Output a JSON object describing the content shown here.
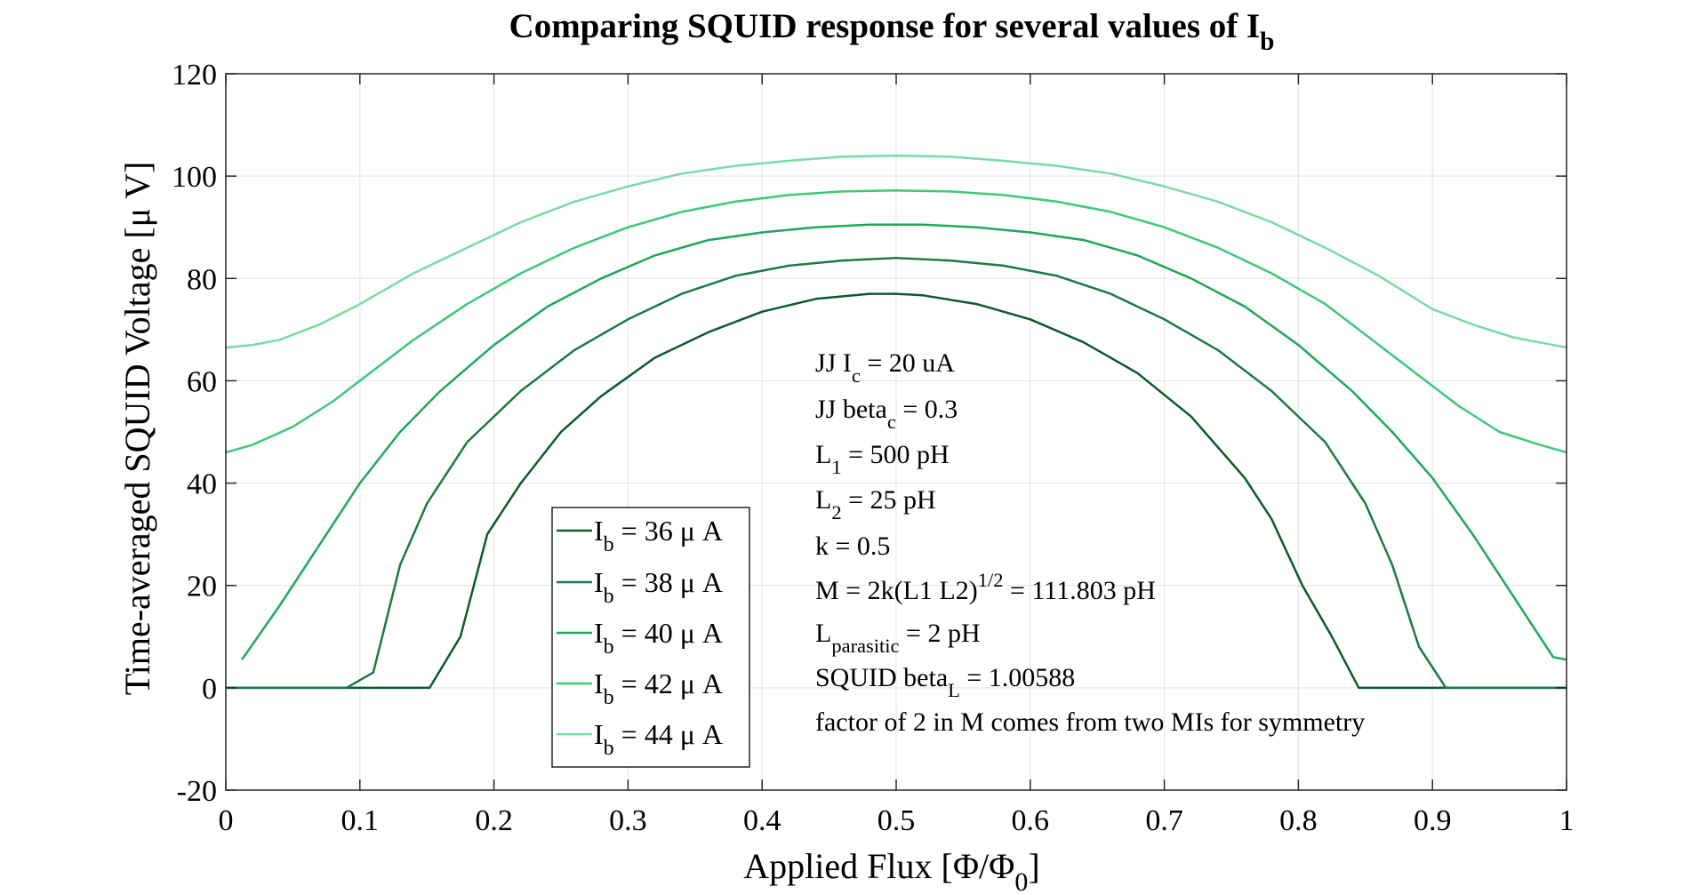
{
  "chart_data": {
    "type": "line",
    "title": {
      "main": "Comparing SQUID response for several values of I",
      "sub": "b"
    },
    "xlabel": {
      "prefix": "Applied Flux [Φ/Φ",
      "sub": "0",
      "suffix": "]"
    },
    "ylabel": "Time-averaged SQUID Voltage [μ V]",
    "xlim": [
      0,
      1
    ],
    "ylim": [
      -20,
      120
    ],
    "xticks": [
      0,
      0.1,
      0.2,
      0.3,
      0.4,
      0.5,
      0.6,
      0.7,
      0.8,
      0.9,
      1
    ],
    "xtick_labels": [
      "0",
      "0.1",
      "0.2",
      "0.3",
      "0.4",
      "0.5",
      "0.6",
      "0.7",
      "0.8",
      "0.9",
      "1"
    ],
    "yticks": [
      -20,
      0,
      20,
      40,
      60,
      80,
      100,
      120
    ],
    "ytick_labels": [
      "-20",
      "0",
      "20",
      "40",
      "60",
      "80",
      "100",
      "120"
    ],
    "grid": true,
    "legend_position": "lower-left",
    "series": [
      {
        "label_main": "I",
        "label_sub": "b",
        "label_rest": " = 36 μ A",
        "color": "#0d5a2c",
        "x": [
          0,
          0.05,
          0.1,
          0.152,
          0.175,
          0.195,
          0.22,
          0.25,
          0.28,
          0.32,
          0.36,
          0.4,
          0.44,
          0.48,
          0.5,
          0.52,
          0.56,
          0.6,
          0.64,
          0.68,
          0.72,
          0.76,
          0.78,
          0.803,
          0.825,
          0.845,
          0.9,
          1
        ],
        "y": [
          0,
          0,
          0,
          0,
          10,
          30,
          40,
          50,
          57,
          64.5,
          69.5,
          73.5,
          76,
          77,
          77,
          76.7,
          75,
          72,
          67.5,
          61.5,
          53,
          41,
          33,
          20,
          10,
          0,
          0,
          0
        ]
      },
      {
        "label_main": "I",
        "label_sub": "b",
        "label_rest": " = 38 μ A",
        "color": "#1c7a46",
        "x": [
          0,
          0.05,
          0.09,
          0.11,
          0.13,
          0.15,
          0.18,
          0.22,
          0.26,
          0.3,
          0.34,
          0.38,
          0.42,
          0.46,
          0.5,
          0.54,
          0.58,
          0.62,
          0.66,
          0.7,
          0.74,
          0.78,
          0.82,
          0.85,
          0.87,
          0.89,
          0.91,
          1
        ],
        "y": [
          0,
          0,
          0,
          3,
          24,
          36,
          48,
          58,
          66,
          72,
          77,
          80.5,
          82.5,
          83.5,
          84,
          83.5,
          82.5,
          80.5,
          77,
          72,
          66,
          58,
          48,
          36,
          24,
          8,
          0,
          0
        ]
      },
      {
        "label_main": "I",
        "label_sub": "b",
        "label_rest": " = 40 μ A",
        "color": "#1ea75a",
        "x": [
          0.012,
          0.04,
          0.07,
          0.1,
          0.13,
          0.16,
          0.2,
          0.24,
          0.28,
          0.32,
          0.36,
          0.4,
          0.44,
          0.48,
          0.5,
          0.52,
          0.56,
          0.6,
          0.64,
          0.68,
          0.72,
          0.76,
          0.8,
          0.84,
          0.87,
          0.9,
          0.93,
          0.96,
          0.99,
          1
        ],
        "y": [
          5.5,
          16,
          28,
          40,
          50,
          58,
          67,
          74.5,
          80,
          84.5,
          87.5,
          89,
          90,
          90.5,
          90.5,
          90.5,
          90,
          89,
          87.5,
          84.5,
          80,
          74.5,
          67,
          58,
          50,
          41,
          30,
          18,
          6,
          5.5
        ]
      },
      {
        "label_main": "I",
        "label_sub": "b",
        "label_rest": " = 42 μ A",
        "color": "#3cc97a",
        "x": [
          0,
          0.02,
          0.05,
          0.08,
          0.11,
          0.14,
          0.18,
          0.22,
          0.26,
          0.3,
          0.34,
          0.38,
          0.42,
          0.46,
          0.5,
          0.54,
          0.58,
          0.62,
          0.66,
          0.7,
          0.74,
          0.78,
          0.82,
          0.86,
          0.89,
          0.92,
          0.95,
          0.98,
          1
        ],
        "y": [
          46,
          47.5,
          51,
          56,
          62,
          68,
          75,
          81,
          86,
          90,
          93,
          95,
          96.3,
          97,
          97.2,
          97,
          96.3,
          95,
          93,
          90,
          86,
          81,
          75,
          67,
          61,
          55,
          50,
          47.5,
          46
        ]
      },
      {
        "label_main": "I",
        "label_sub": "b",
        "label_rest": " = 44 μ A",
        "color": "#79dba4",
        "x": [
          0,
          0.02,
          0.04,
          0.07,
          0.1,
          0.14,
          0.18,
          0.22,
          0.26,
          0.3,
          0.34,
          0.38,
          0.42,
          0.46,
          0.5,
          0.54,
          0.58,
          0.62,
          0.66,
          0.7,
          0.74,
          0.78,
          0.82,
          0.86,
          0.9,
          0.93,
          0.96,
          0.98,
          1
        ],
        "y": [
          66.5,
          67,
          68,
          71,
          75,
          81,
          86,
          91,
          95,
          98,
          100.5,
          102,
          103,
          103.8,
          104,
          103.8,
          103,
          102,
          100.5,
          98,
          95,
          91,
          86,
          80.5,
          74,
          71,
          68.5,
          67.5,
          66.5
        ]
      }
    ],
    "annotations": [
      {
        "parts": [
          [
            "JJ I",
            ""
          ],
          [
            "c",
            "sub"
          ],
          [
            " = 20 uA",
            ""
          ]
        ]
      },
      {
        "parts": [
          [
            "JJ beta",
            ""
          ],
          [
            "c",
            "sub"
          ],
          [
            " = 0.3",
            ""
          ]
        ]
      },
      {
        "parts": [
          [
            "L",
            ""
          ],
          [
            "1",
            "sub"
          ],
          [
            " = 500 pH",
            ""
          ]
        ]
      },
      {
        "parts": [
          [
            "L",
            ""
          ],
          [
            "2",
            "sub"
          ],
          [
            " = 25 pH",
            ""
          ]
        ]
      },
      {
        "parts": [
          [
            "k = 0.5",
            ""
          ]
        ]
      },
      {
        "parts": [
          [
            "M = 2k(L1 L2)",
            ""
          ],
          [
            "1/2",
            "sup"
          ],
          [
            " = 111.803 pH",
            ""
          ]
        ]
      },
      {
        "parts": [
          [
            "L",
            ""
          ],
          [
            "parasitic",
            "sub"
          ],
          [
            " = 2 pH",
            ""
          ]
        ]
      },
      {
        "parts": [
          [
            "SQUID beta",
            ""
          ],
          [
            "L",
            "sub"
          ],
          [
            " = 1.00588",
            ""
          ]
        ]
      },
      {
        "parts": [
          [
            "factor of 2 in M comes from two MIs for symmetry",
            ""
          ]
        ]
      }
    ]
  }
}
